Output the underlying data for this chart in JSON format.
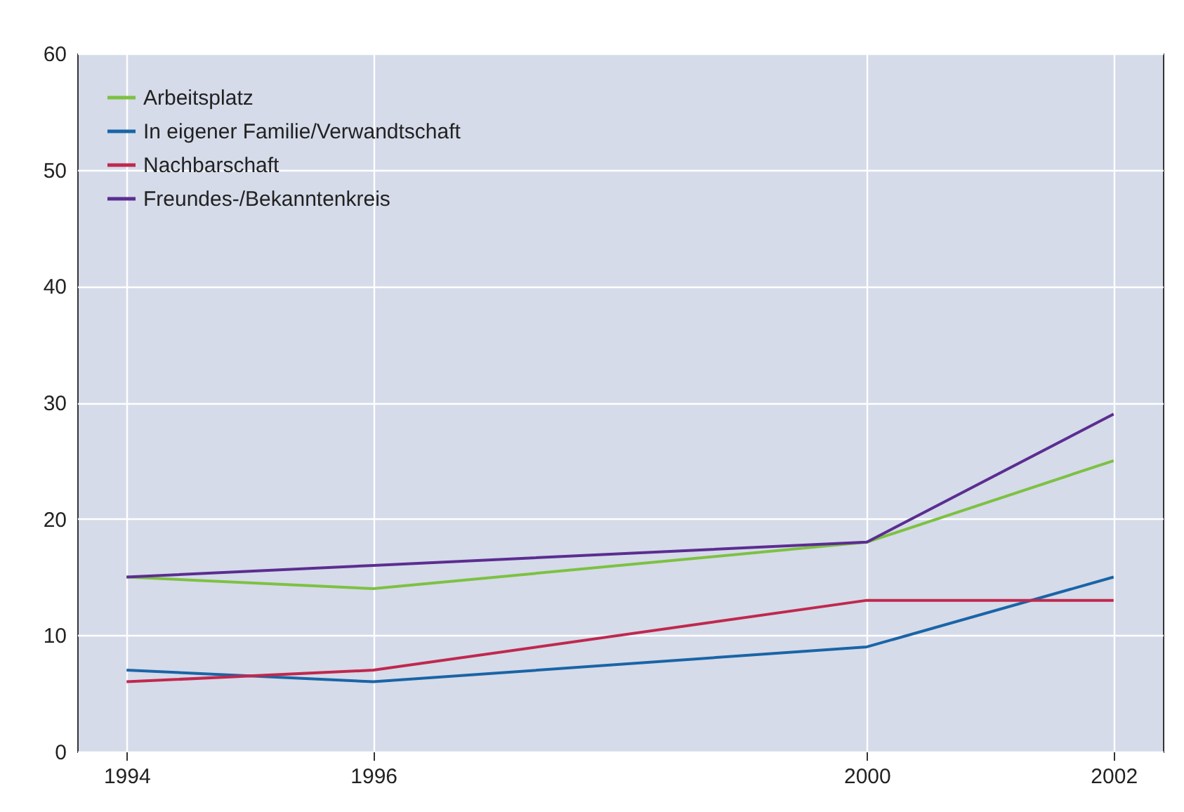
{
  "chart_data": {
    "type": "line",
    "x": [
      1994,
      1996,
      2000,
      2002
    ],
    "xlim": [
      1993.6,
      2002.4
    ],
    "xticks": [
      1994,
      1996,
      2000,
      2002
    ],
    "ylim": [
      0,
      60
    ],
    "yticks": [
      0,
      10,
      20,
      30,
      40,
      50,
      60
    ],
    "grid": true,
    "legend": "top left",
    "line_style": "solid",
    "series": [
      {
        "name": "Arbeitsplatz",
        "color": "#7dc142",
        "values": [
          15,
          14,
          18,
          25
        ]
      },
      {
        "name": "In eigener Familie/Verwandtschaft",
        "color": "#1a64a6",
        "values": [
          7,
          6,
          9,
          15
        ]
      },
      {
        "name": "Nachbarschaft",
        "color": "#c0284e",
        "values": [
          6,
          7,
          13,
          13
        ]
      },
      {
        "name": "Freundes-/Bekanntenkreis",
        "color": "#5b2d91",
        "values": [
          15,
          16,
          18,
          29
        ]
      }
    ]
  }
}
